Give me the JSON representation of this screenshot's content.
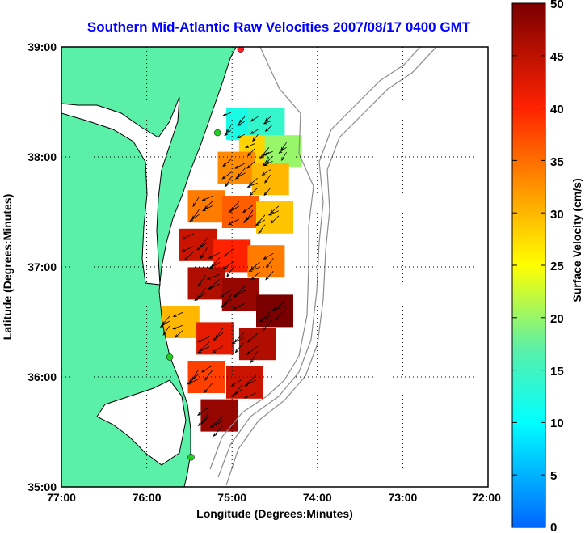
{
  "chart_data": {
    "type": "heatmap",
    "title": "Southern Mid-Atlantic Raw Velocities 2007/08/17 0400 GMT",
    "xlabel": "Longitude (Degrees:Minutes)",
    "ylabel": "Latitude (Degrees:Minutes)",
    "x_ticks": [
      "77:00",
      "76:00",
      "75:00",
      "74:00",
      "73:00",
      "72:00"
    ],
    "y_ticks": [
      "39:00",
      "38:00",
      "37:00",
      "36:00",
      "35:00"
    ],
    "xlim": [
      -77,
      -72
    ],
    "ylim": [
      35,
      39
    ],
    "grid": true,
    "colorbar": {
      "label": "Surface Velocity (cm/s)",
      "range": [
        0,
        50
      ],
      "ticks": [
        "50",
        "45",
        "40",
        "35",
        "30",
        "25",
        "20",
        "15",
        "10",
        "5",
        "0"
      ]
    },
    "colors": {
      "title": "#0000ff",
      "land": "#5af0a8",
      "coastline": "#000000",
      "bathymetry": "#8c8c8c",
      "arrows": "#000000",
      "station_green": "#22cc22",
      "station_red": "#ff2222"
    },
    "velocity_field": [
      {
        "lon": -74.85,
        "lat": 38.3,
        "speed": 12
      },
      {
        "lon": -74.6,
        "lat": 38.3,
        "speed": 14
      },
      {
        "lon": -74.7,
        "lat": 38.05,
        "speed": 28
      },
      {
        "lon": -74.4,
        "lat": 38.05,
        "speed": 20
      },
      {
        "lon": -74.95,
        "lat": 37.9,
        "speed": 33
      },
      {
        "lon": -74.55,
        "lat": 37.8,
        "speed": 30
      },
      {
        "lon": -75.3,
        "lat": 37.55,
        "speed": 34
      },
      {
        "lon": -74.9,
        "lat": 37.5,
        "speed": 36
      },
      {
        "lon": -74.5,
        "lat": 37.45,
        "speed": 29
      },
      {
        "lon": -75.4,
        "lat": 37.2,
        "speed": 44
      },
      {
        "lon": -75.0,
        "lat": 37.1,
        "speed": 40
      },
      {
        "lon": -74.6,
        "lat": 37.05,
        "speed": 34
      },
      {
        "lon": -75.3,
        "lat": 36.85,
        "speed": 46
      },
      {
        "lon": -74.9,
        "lat": 36.75,
        "speed": 48
      },
      {
        "lon": -74.5,
        "lat": 36.6,
        "speed": 50
      },
      {
        "lon": -75.6,
        "lat": 36.5,
        "speed": 30
      },
      {
        "lon": -75.2,
        "lat": 36.35,
        "speed": 42
      },
      {
        "lon": -74.7,
        "lat": 36.3,
        "speed": 46
      },
      {
        "lon": -75.3,
        "lat": 36.0,
        "speed": 38
      },
      {
        "lon": -74.85,
        "lat": 35.95,
        "speed": 44
      },
      {
        "lon": -75.15,
        "lat": 35.65,
        "speed": 48
      }
    ],
    "stations": [
      {
        "lon": -74.9,
        "lat": 38.98,
        "color": "station_red"
      },
      {
        "lon": -75.17,
        "lat": 38.22,
        "color": "station_green"
      },
      {
        "lon": -75.73,
        "lat": 36.18,
        "color": "station_green"
      },
      {
        "lon": -75.48,
        "lat": 35.27,
        "color": "station_green"
      }
    ]
  }
}
